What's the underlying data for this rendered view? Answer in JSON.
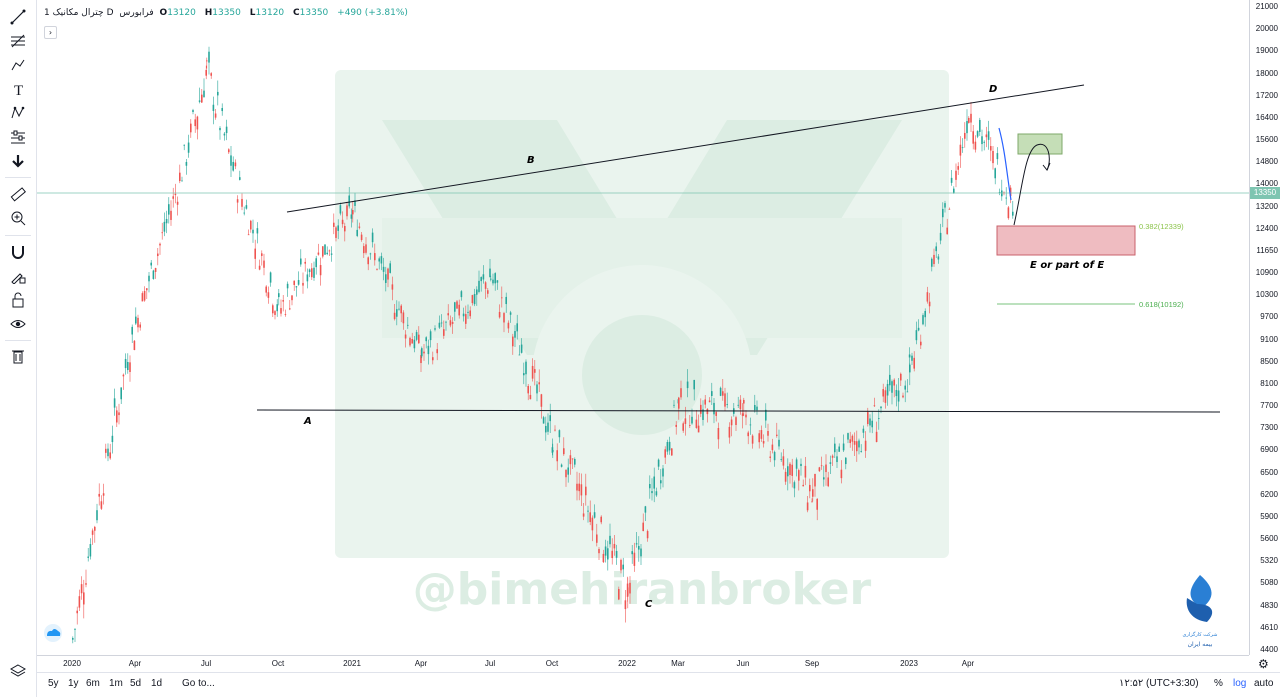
{
  "legend": {
    "name": "چترال مکانیک",
    "interval": "1D",
    "exchange": "فرابورس",
    "open_label": "O",
    "open": "13120",
    "high_label": "H",
    "high": "13350",
    "low_label": "L",
    "low": "13120",
    "close_label": "C",
    "close": "13350",
    "change": "+490 (+3.81%)"
  },
  "price_axis": {
    "ticks": [
      "21000",
      "20000",
      "19000",
      "18000",
      "17200",
      "16400",
      "15600",
      "14800",
      "14000",
      "13200",
      "12400",
      "11650",
      "10900",
      "10300",
      "9700",
      "9100",
      "8500",
      "8100",
      "7700",
      "7300",
      "6900",
      "6500",
      "6200",
      "5900",
      "5600",
      "5320",
      "5080",
      "4830",
      "4610",
      "4400"
    ],
    "current_price": "13350"
  },
  "time_axis": {
    "ticks": [
      "2020",
      "Apr",
      "Jul",
      "Oct",
      "2021",
      "Apr",
      "Jul",
      "Oct",
      "2022",
      "Mar",
      "Jun",
      "Sep",
      "2023",
      "Apr"
    ]
  },
  "bottom_bar": {
    "ranges": [
      "5y",
      "1y",
      "6m",
      "1m",
      "5d",
      "1d"
    ],
    "goto_label": "Go to...",
    "time_display": "۱۲:۵۲ (UTC+3:30)",
    "percent_label": "%",
    "log_label": "log",
    "auto_label": "auto"
  },
  "watermark": {
    "handle": "@bimehiranbroker",
    "company_line1": "شرکت‌ کارگزاری",
    "company_line2": "بیمه ایران"
  },
  "colors": {
    "up": "#26a69a",
    "down": "#ef5350",
    "accent": "#2962ff",
    "current_price": "#7ec5b1",
    "fib_0382": "#8bc34a",
    "fib_0618": "#4caf50",
    "zone_red": "#e8a0a6",
    "zone_green": "#b7d6a5"
  },
  "chart_data": {
    "type": "candlestick",
    "symbol": "چترال مکانیک",
    "interval": "1D",
    "scale": "log",
    "ylim": [
      4400,
      21000
    ],
    "x": [
      "2020",
      "Apr",
      "Jul",
      "Oct",
      "2021",
      "Apr",
      "Jul",
      "Oct",
      "2022",
      "Mar",
      "Jun",
      "Sep",
      "2023",
      "Apr"
    ],
    "price_path": [
      {
        "t": "2020",
        "price": 4500
      },
      {
        "t": "Apr",
        "price": 9500
      },
      {
        "t": "Jul",
        "price": 18200
      },
      {
        "t": "Oct",
        "price": 9900
      },
      {
        "t": "2021",
        "price": 13000
      },
      {
        "t": "Apr",
        "price": 8700
      },
      {
        "t": "Jul",
        "price": 10800
      },
      {
        "t": "Oct",
        "price": 7100
      },
      {
        "t": "2022",
        "price": 5000
      },
      {
        "t": "Mar",
        "price": 7700
      },
      {
        "t": "Jun",
        "price": 7600
      },
      {
        "t": "Sep",
        "price": 6200
      },
      {
        "t": "2023",
        "price": 8300
      },
      {
        "t": "Apr",
        "price": 16800
      },
      {
        "t": "last",
        "price": 13350
      }
    ],
    "annotations": [
      {
        "label": "A",
        "price": 7800
      },
      {
        "label": "B",
        "text": "B"
      },
      {
        "label": "C",
        "price": 5000
      },
      {
        "label": "D",
        "price": 16800
      },
      {
        "text": "E or part of E"
      },
      {
        "text": "0.382(12339)",
        "price": 12339
      },
      {
        "text": "0.618(10192)",
        "price": 10192
      }
    ],
    "horizontal_level": 8000,
    "current_price": 13350
  }
}
